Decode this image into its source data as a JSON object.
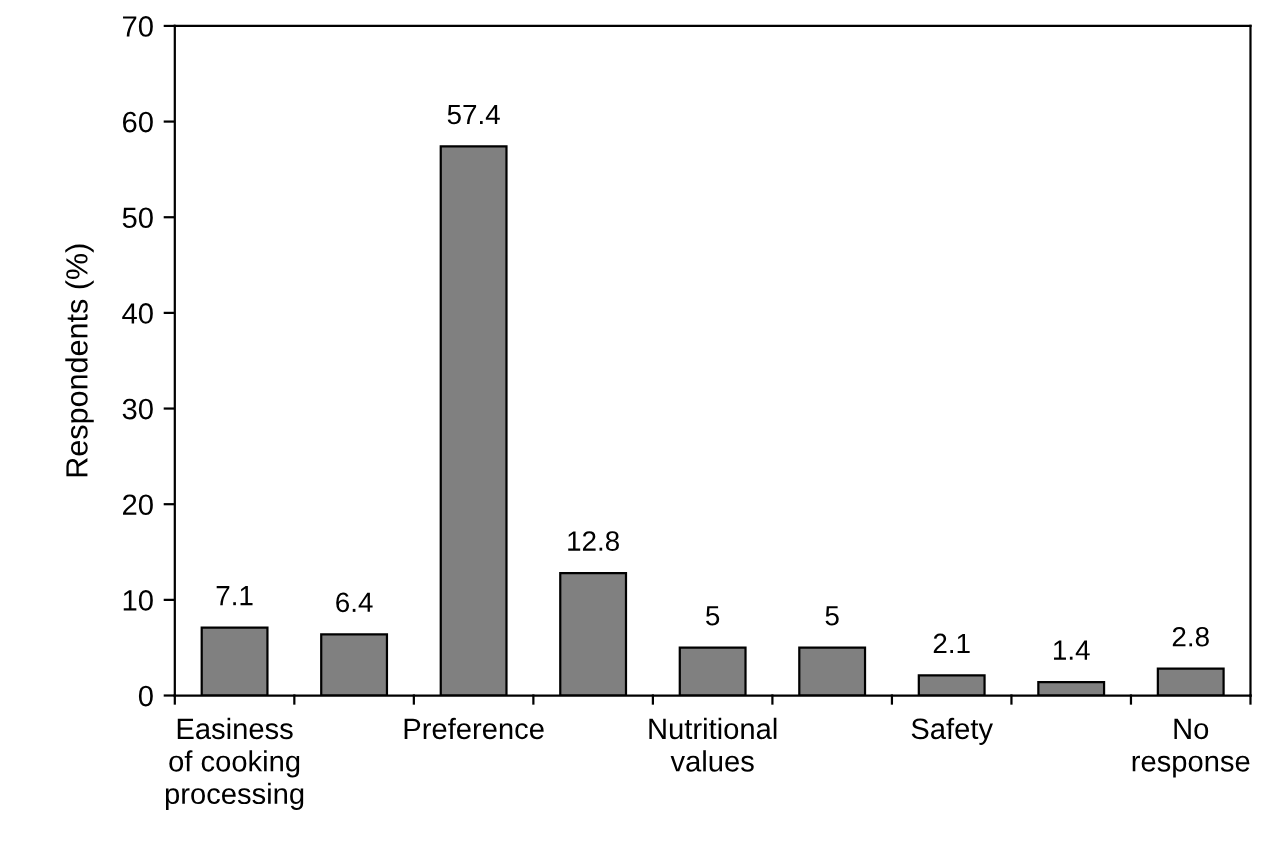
{
  "chart_data": {
    "type": "bar",
    "categories": [
      "Easiness\nof cooking\nprocessing",
      null,
      "Preference",
      null,
      "Nutritional\nvalues",
      null,
      "Safety",
      null,
      "No\nresponse"
    ],
    "values": [
      7.1,
      6.4,
      57.4,
      12.8,
      5,
      5,
      2.1,
      1.4,
      2.8
    ],
    "color": "#808080",
    "ylabel": "Respondents (%)",
    "ylim": [
      0,
      70
    ],
    "yticks": [
      0,
      10,
      20,
      30,
      40,
      50,
      60,
      70
    ],
    "data_labels": true,
    "grid": false,
    "legend": false
  }
}
